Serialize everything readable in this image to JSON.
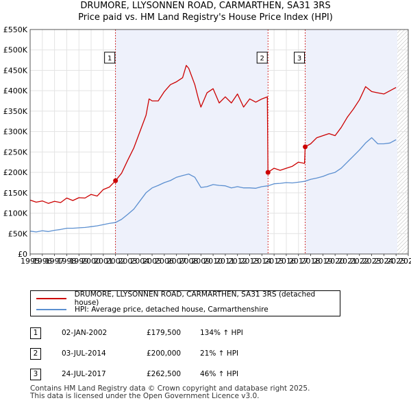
{
  "chart_data": {
    "type": "line",
    "title": "DRUMORE, LLYSONNEN ROAD, CARMARTHEN, SA31 3RS",
    "subtitle": "Price paid vs. HM Land Registry's House Price Index (HPI)",
    "xlim": [
      1995,
      2026
    ],
    "ylim": [
      0,
      550000
    ],
    "x_ticks": [
      1995,
      1996,
      1997,
      1998,
      1999,
      2000,
      2001,
      2002,
      2003,
      2004,
      2005,
      2006,
      2007,
      2008,
      2009,
      2010,
      2011,
      2012,
      2013,
      2014,
      2015,
      2016,
      2017,
      2018,
      2019,
      2020,
      2021,
      2022,
      2023,
      2024,
      2025,
      2026
    ],
    "y_ticks": [
      {
        "value": 0,
        "label": "£0"
      },
      {
        "value": 50000,
        "label": "£50K"
      },
      {
        "value": 100000,
        "label": "£100K"
      },
      {
        "value": 150000,
        "label": "£150K"
      },
      {
        "value": 200000,
        "label": "£200K"
      },
      {
        "value": 250000,
        "label": "£250K"
      },
      {
        "value": 300000,
        "label": "£300K"
      },
      {
        "value": 350000,
        "label": "£350K"
      },
      {
        "value": 400000,
        "label": "£400K"
      },
      {
        "value": 450000,
        "label": "£450K"
      },
      {
        "value": 500000,
        "label": "£500K"
      },
      {
        "value": 550000,
        "label": "£550K"
      }
    ],
    "grid": true,
    "forecast_hatch_from": 2025.1,
    "sale_markers": [
      {
        "label": "1",
        "x": 2002.0
      },
      {
        "label": "2",
        "x": 2014.5
      },
      {
        "label": "3",
        "x": 2017.55
      }
    ],
    "sale_points": [
      {
        "x": 2002.0,
        "y": 179500
      },
      {
        "x": 2014.5,
        "y": 200000
      },
      {
        "x": 2017.55,
        "y": 262500
      }
    ],
    "series": [
      {
        "name": "DRUMORE, LLYSONNEN ROAD, CARMARTHEN, SA31 3RS (detached house)",
        "color": "#cc0000",
        "points": [
          [
            1995.0,
            132000
          ],
          [
            1995.5,
            127000
          ],
          [
            1996.0,
            130000
          ],
          [
            1996.5,
            124000
          ],
          [
            1997.0,
            129000
          ],
          [
            1997.5,
            126000
          ],
          [
            1998.0,
            137000
          ],
          [
            1998.5,
            131000
          ],
          [
            1999.0,
            138000
          ],
          [
            1999.5,
            137000
          ],
          [
            2000.0,
            146000
          ],
          [
            2000.5,
            142000
          ],
          [
            2001.0,
            158000
          ],
          [
            2001.5,
            164000
          ],
          [
            2002.0,
            179500
          ],
          [
            2002.5,
            198000
          ],
          [
            2003.0,
            230000
          ],
          [
            2003.5,
            260000
          ],
          [
            2004.0,
            300000
          ],
          [
            2004.5,
            340000
          ],
          [
            2004.75,
            380000
          ],
          [
            2005.0,
            375000
          ],
          [
            2005.5,
            375000
          ],
          [
            2006.0,
            398000
          ],
          [
            2006.5,
            415000
          ],
          [
            2007.0,
            422000
          ],
          [
            2007.5,
            432000
          ],
          [
            2007.8,
            462000
          ],
          [
            2008.0,
            455000
          ],
          [
            2008.5,
            415000
          ],
          [
            2008.8,
            380000
          ],
          [
            2009.0,
            360000
          ],
          [
            2009.5,
            395000
          ],
          [
            2010.0,
            405000
          ],
          [
            2010.5,
            370000
          ],
          [
            2011.0,
            385000
          ],
          [
            2011.5,
            370000
          ],
          [
            2012.0,
            392000
          ],
          [
            2012.5,
            360000
          ],
          [
            2013.0,
            380000
          ],
          [
            2013.5,
            372000
          ],
          [
            2014.0,
            380000
          ],
          [
            2014.45,
            385000
          ],
          [
            2014.5,
            200000
          ],
          [
            2015.0,
            210000
          ],
          [
            2015.5,
            205000
          ],
          [
            2016.0,
            210000
          ],
          [
            2016.5,
            215000
          ],
          [
            2017.0,
            225000
          ],
          [
            2017.5,
            222000
          ],
          [
            2017.55,
            262500
          ],
          [
            2018.0,
            270000
          ],
          [
            2018.5,
            285000
          ],
          [
            2019.0,
            290000
          ],
          [
            2019.5,
            295000
          ],
          [
            2020.0,
            290000
          ],
          [
            2020.5,
            310000
          ],
          [
            2021.0,
            335000
          ],
          [
            2021.5,
            355000
          ],
          [
            2022.0,
            378000
          ],
          [
            2022.5,
            410000
          ],
          [
            2023.0,
            398000
          ],
          [
            2023.5,
            395000
          ],
          [
            2024.0,
            392000
          ],
          [
            2024.5,
            400000
          ],
          [
            2025.0,
            408000
          ]
        ]
      },
      {
        "name": "HPI: Average price, detached house, Carmarthenshire",
        "color": "#5b8fd0",
        "points": [
          [
            1995.0,
            56000
          ],
          [
            1995.5,
            54000
          ],
          [
            1996.0,
            57000
          ],
          [
            1996.5,
            55000
          ],
          [
            1997.0,
            58000
          ],
          [
            1997.5,
            60000
          ],
          [
            1998.0,
            63000
          ],
          [
            1998.5,
            63000
          ],
          [
            1999.0,
            64000
          ],
          [
            1999.5,
            65000
          ],
          [
            2000.0,
            67000
          ],
          [
            2000.5,
            69000
          ],
          [
            2001.0,
            72000
          ],
          [
            2001.5,
            75000
          ],
          [
            2002.0,
            77000
          ],
          [
            2002.5,
            85000
          ],
          [
            2003.0,
            97000
          ],
          [
            2003.5,
            110000
          ],
          [
            2004.0,
            130000
          ],
          [
            2004.5,
            150000
          ],
          [
            2005.0,
            162000
          ],
          [
            2005.5,
            168000
          ],
          [
            2006.0,
            175000
          ],
          [
            2006.5,
            180000
          ],
          [
            2007.0,
            188000
          ],
          [
            2007.5,
            192000
          ],
          [
            2008.0,
            196000
          ],
          [
            2008.5,
            188000
          ],
          [
            2009.0,
            163000
          ],
          [
            2009.5,
            165000
          ],
          [
            2010.0,
            170000
          ],
          [
            2010.5,
            168000
          ],
          [
            2011.0,
            167000
          ],
          [
            2011.5,
            162000
          ],
          [
            2012.0,
            165000
          ],
          [
            2012.5,
            162000
          ],
          [
            2013.0,
            162000
          ],
          [
            2013.5,
            161000
          ],
          [
            2014.0,
            165000
          ],
          [
            2014.5,
            167000
          ],
          [
            2015.0,
            172000
          ],
          [
            2015.5,
            173000
          ],
          [
            2016.0,
            175000
          ],
          [
            2016.5,
            174000
          ],
          [
            2017.0,
            176000
          ],
          [
            2017.5,
            178000
          ],
          [
            2018.0,
            183000
          ],
          [
            2018.5,
            186000
          ],
          [
            2019.0,
            190000
          ],
          [
            2019.5,
            196000
          ],
          [
            2020.0,
            200000
          ],
          [
            2020.5,
            210000
          ],
          [
            2021.0,
            225000
          ],
          [
            2021.5,
            240000
          ],
          [
            2022.0,
            255000
          ],
          [
            2022.5,
            272000
          ],
          [
            2023.0,
            285000
          ],
          [
            2023.5,
            270000
          ],
          [
            2024.0,
            270000
          ],
          [
            2024.5,
            272000
          ],
          [
            2025.0,
            280000
          ]
        ]
      }
    ]
  },
  "legend": {
    "property_label": "DRUMORE, LLYSONNEN ROAD, CARMARTHEN, SA31 3RS (detached house)",
    "hpi_label": "HPI: Average price, detached house, Carmarthenshire"
  },
  "sales": [
    {
      "num": "1",
      "date": "02-JAN-2002",
      "price": "£179,500",
      "hpi": "134% ↑ HPI"
    },
    {
      "num": "2",
      "date": "03-JUL-2014",
      "price": "£200,000",
      "hpi": "21% ↑ HPI"
    },
    {
      "num": "3",
      "date": "24-JUL-2017",
      "price": "£262,500",
      "hpi": "46% ↑ HPI"
    }
  ],
  "footer": {
    "line1": "Contains HM Land Registry data © Crown copyright and database right 2025.",
    "line2": "This data is licensed under the Open Government Licence v3.0."
  }
}
